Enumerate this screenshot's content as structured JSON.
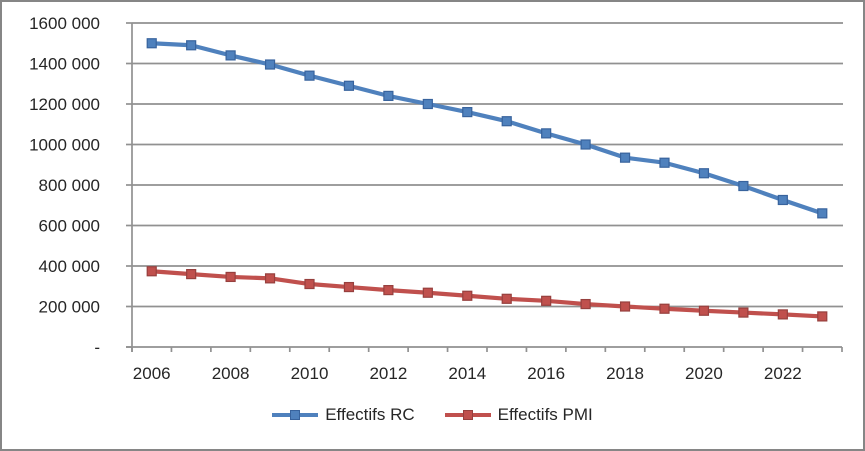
{
  "frame": {
    "border_color": "#868686",
    "background": "#ffffff"
  },
  "chart_data": {
    "type": "line",
    "x": [
      2006,
      2007,
      2008,
      2009,
      2010,
      2011,
      2012,
      2013,
      2014,
      2015,
      2016,
      2017,
      2018,
      2019,
      2020,
      2021,
      2022,
      2023
    ],
    "x_tick_labels": [
      "2006",
      "2008",
      "2010",
      "2012",
      "2014",
      "2016",
      "2018",
      "2020",
      "2022"
    ],
    "y_tick_labels": [
      "-",
      "200 000",
      "400 000",
      "600 000",
      "800 000",
      "1000 000",
      "1200 000",
      "1400 000",
      "1600 000"
    ],
    "ylim": [
      0,
      1600000
    ],
    "y_tick_step": 200000,
    "grid": true,
    "legend_position": "bottom",
    "series": [
      {
        "name": "Effectifs RC",
        "color": "#4F81BD",
        "marker_border": "#38639D",
        "marker": "square",
        "values": [
          1500000,
          1490000,
          1440000,
          1395000,
          1340000,
          1290000,
          1240000,
          1200000,
          1160000,
          1115000,
          1055000,
          1000000,
          935000,
          910000,
          858000,
          795000,
          726000,
          660000
        ]
      },
      {
        "name": "Effectifs PMI",
        "color": "#C0504D",
        "marker_border": "#97403E",
        "marker": "square",
        "values": [
          374000,
          360000,
          346000,
          339000,
          311000,
          296000,
          281000,
          268000,
          253000,
          238000,
          228000,
          212000,
          200000,
          189000,
          179000,
          170000,
          161000,
          151000
        ]
      }
    ],
    "gridline_color": "#919191",
    "axis_color": "#919191",
    "text_color": "#262626"
  }
}
